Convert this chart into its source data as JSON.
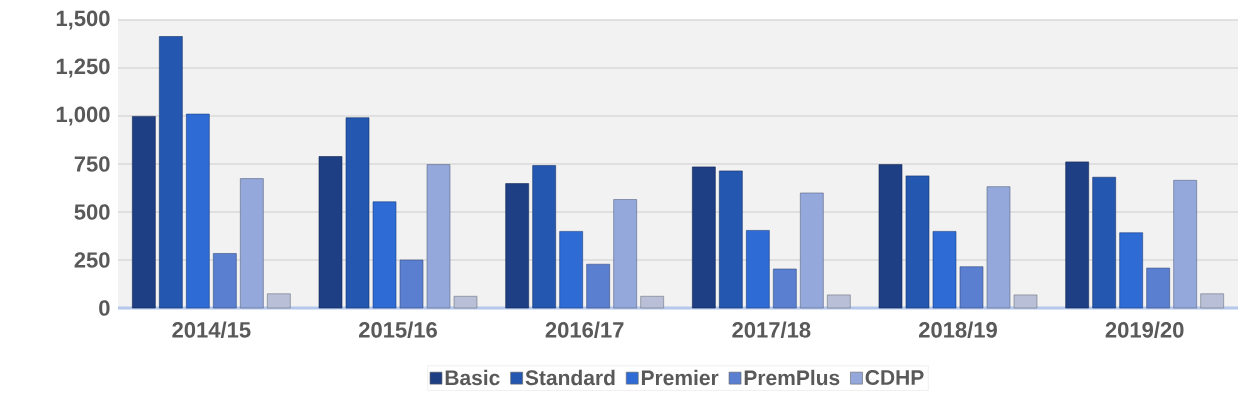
{
  "chart_data": {
    "type": "bar",
    "categories": [
      "2014/15",
      "2015/16",
      "2016/17",
      "2017/18",
      "2018/19",
      "2019/20"
    ],
    "series": [
      {
        "name": "Basic",
        "color": "#1f3f85",
        "values": [
          998,
          789,
          648,
          735,
          747,
          761
        ]
      },
      {
        "name": "Standard",
        "color": "#2457b0",
        "values": [
          1414,
          991,
          742,
          714,
          688,
          681
        ]
      },
      {
        "name": "Premier",
        "color": "#2e6bd4",
        "values": [
          1010,
          553,
          399,
          404,
          399,
          392
        ]
      },
      {
        "name": "PremPlus",
        "color": "#5a7fd0",
        "values": [
          284,
          250,
          228,
          203,
          215,
          208
        ]
      },
      {
        "name": "CDHP",
        "color": "#95a8db",
        "values": [
          674,
          747,
          565,
          599,
          632,
          665
        ]
      },
      {
        "color": "#b8bfd6",
        "values": [
          74,
          61,
          61,
          68,
          68,
          74
        ]
      }
    ],
    "ylim": [
      0,
      1500
    ],
    "yticks": [
      0,
      250,
      500,
      750,
      {
        "value": 1000,
        "label": "1,000"
      },
      {
        "value": 1250,
        "label": "1,250"
      },
      {
        "value": 1500,
        "label": "1,500"
      }
    ],
    "grid": "y",
    "legend": "bottom"
  }
}
